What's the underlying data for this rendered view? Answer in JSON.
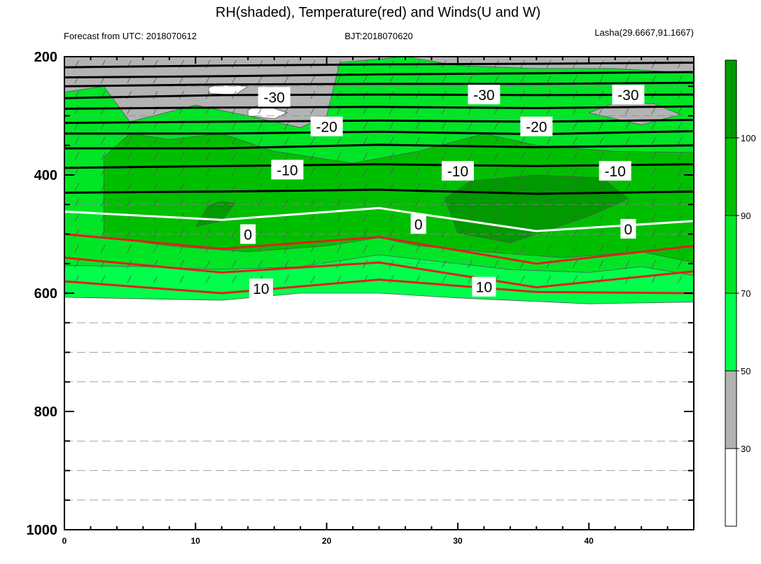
{
  "chart_data": {
    "type": "contour",
    "title": "RH(shaded), Temperature(red) and Winds(U and W)",
    "subtitle_left": "Forecast from UTC: 2018070612",
    "subtitle_center": "BJT:2018070620",
    "subtitle_right": "Lasha(29.6667,91.1667)",
    "x_ticks": [
      "0",
      "10",
      "20",
      "30",
      "40"
    ],
    "x_tick_values": [
      0,
      10,
      20,
      30,
      40
    ],
    "xlim": [
      0,
      48
    ],
    "y_ticks": [
      "200",
      "400",
      "600",
      "800",
      "1000"
    ],
    "y_tick_values": [
      200,
      400,
      600,
      800,
      1000
    ],
    "ylim": [
      200,
      1000
    ],
    "y_reversed": true,
    "colorbar": {
      "labels": [
        "30",
        "50",
        "70",
        "90",
        "100"
      ],
      "levels": [
        0,
        30,
        50,
        70,
        90,
        100,
        110
      ],
      "colors": [
        "#ffffff",
        "#b3b3b3",
        "#00ff4c",
        "#00e626",
        "#00bf00",
        "#009900"
      ]
    },
    "temperature_contours": [
      {
        "label": "-30",
        "color": "#000000",
        "points": [
          [
            0,
            218
          ],
          [
            12,
            215
          ],
          [
            24,
            213
          ],
          [
            36,
            212
          ],
          [
            48,
            210
          ]
        ]
      },
      {
        "label": "-30",
        "color": "#000000",
        "points": [
          [
            0,
            235
          ],
          [
            12,
            233
          ],
          [
            24,
            230
          ],
          [
            36,
            228
          ],
          [
            48,
            226
          ]
        ]
      },
      {
        "label": "-30",
        "color": "#000000",
        "points": [
          [
            0,
            250
          ],
          [
            12,
            247
          ],
          [
            24,
            246
          ],
          [
            36,
            246
          ],
          [
            48,
            244
          ]
        ]
      },
      {
        "label": "-30",
        "color": "#000000",
        "points": [
          [
            0,
            270
          ],
          [
            12,
            265
          ],
          [
            24,
            264
          ],
          [
            36,
            265
          ],
          [
            48,
            264
          ]
        ]
      },
      {
        "label": "-30",
        "color": "#000000",
        "points": [
          [
            0,
            288
          ],
          [
            12,
            286
          ],
          [
            24,
            285
          ],
          [
            36,
            287
          ],
          [
            48,
            284
          ]
        ]
      },
      {
        "label": "-20",
        "color": "#000000",
        "points": [
          [
            0,
            312
          ],
          [
            12,
            310
          ],
          [
            24,
            308
          ],
          [
            36,
            310
          ],
          [
            48,
            307
          ]
        ]
      },
      {
        "label": "-20",
        "color": "#000000",
        "points": [
          [
            0,
            330
          ],
          [
            12,
            330
          ],
          [
            24,
            327
          ],
          [
            36,
            331
          ],
          [
            48,
            326
          ]
        ]
      },
      {
        "label": "-20",
        "color": "#000000",
        "points": [
          [
            0,
            355
          ],
          [
            12,
            355
          ],
          [
            24,
            349
          ],
          [
            36,
            353
          ],
          [
            48,
            350
          ]
        ]
      },
      {
        "label": "-10",
        "color": "#000000",
        "points": [
          [
            0,
            388
          ],
          [
            12,
            385
          ],
          [
            24,
            382
          ],
          [
            36,
            385
          ],
          [
            48,
            382
          ]
        ]
      },
      {
        "label": "-10",
        "color": "#000000",
        "points": [
          [
            0,
            430
          ],
          [
            12,
            428
          ],
          [
            24,
            425
          ],
          [
            36,
            432
          ],
          [
            48,
            428
          ]
        ]
      },
      {
        "label": "0",
        "color": "#ffffff",
        "points": [
          [
            0,
            462
          ],
          [
            12,
            476
          ],
          [
            24,
            456
          ],
          [
            36,
            495
          ],
          [
            48,
            478
          ]
        ]
      },
      {
        "label": "10",
        "color": "#e0201e",
        "points": [
          [
            0,
            500
          ],
          [
            12,
            525
          ],
          [
            24,
            505
          ],
          [
            36,
            550
          ],
          [
            48,
            520
          ]
        ]
      },
      {
        "label": "10",
        "color": "#e0201e",
        "points": [
          [
            0,
            540
          ],
          [
            12,
            565
          ],
          [
            24,
            548
          ],
          [
            36,
            590
          ],
          [
            48,
            563
          ]
        ]
      },
      {
        "label": "10",
        "color": "#e0201e",
        "points": [
          [
            0,
            580
          ],
          [
            12,
            600
          ],
          [
            24,
            577
          ],
          [
            36,
            598
          ],
          [
            48,
            600
          ]
        ]
      }
    ],
    "contour_labels": [
      {
        "text": "-30",
        "x": 16,
        "y": 268
      },
      {
        "text": "-30",
        "x": 32,
        "y": 264
      },
      {
        "text": "-30",
        "x": 43,
        "y": 264
      },
      {
        "text": "-20",
        "x": 20,
        "y": 318
      },
      {
        "text": "-20",
        "x": 36,
        "y": 318
      },
      {
        "text": "-10",
        "x": 17,
        "y": 391
      },
      {
        "text": "-10",
        "x": 30,
        "y": 393
      },
      {
        "text": "-10",
        "x": 42,
        "y": 393
      },
      {
        "text": "0",
        "x": 14,
        "y": 500
      },
      {
        "text": "0",
        "x": 27,
        "y": 483
      },
      {
        "text": "0",
        "x": 43,
        "y": 491
      },
      {
        "text": "10",
        "x": 15,
        "y": 592
      },
      {
        "text": "10",
        "x": 32,
        "y": 589
      }
    ],
    "rh_regions": [
      {
        "level": 50,
        "points": [
          [
            0,
            200
          ],
          [
            48,
            200
          ],
          [
            48,
            615
          ],
          [
            40,
            618
          ],
          [
            30,
            608
          ],
          [
            24,
            600
          ],
          [
            18,
            600
          ],
          [
            12,
            612
          ],
          [
            0,
            607
          ]
        ]
      },
      {
        "level": 70,
        "points": [
          [
            0,
            200
          ],
          [
            48,
            200
          ],
          [
            48,
            570
          ],
          [
            44,
            555
          ],
          [
            40,
            565
          ],
          [
            34,
            560
          ],
          [
            28,
            545
          ],
          [
            24,
            535
          ],
          [
            18,
            555
          ],
          [
            12,
            560
          ],
          [
            6,
            555
          ],
          [
            0,
            553
          ]
        ]
      },
      {
        "level": 90,
        "points": [
          [
            3,
            370
          ],
          [
            5,
            330
          ],
          [
            8,
            340
          ],
          [
            12,
            330
          ],
          [
            16,
            360
          ],
          [
            22,
            380
          ],
          [
            27,
            360
          ],
          [
            32,
            330
          ],
          [
            36,
            350
          ],
          [
            42,
            360
          ],
          [
            48,
            362
          ],
          [
            48,
            548
          ],
          [
            44,
            530
          ],
          [
            38,
            540
          ],
          [
            32,
            530
          ],
          [
            27,
            520
          ],
          [
            24,
            506
          ],
          [
            20,
            520
          ],
          [
            14,
            530
          ],
          [
            8,
            520
          ],
          [
            3,
            505
          ]
        ]
      },
      {
        "level": 100,
        "points": [
          [
            29,
            440
          ],
          [
            31,
            410
          ],
          [
            36,
            400
          ],
          [
            41,
            405
          ],
          [
            43,
            440
          ],
          [
            40,
            470
          ],
          [
            34,
            515
          ],
          [
            30,
            498
          ]
        ]
      },
      {
        "level": 100,
        "points": [
          [
            11,
            452
          ],
          [
            12,
            444
          ],
          [
            13,
            448
          ],
          [
            12,
            478
          ],
          [
            10,
            487
          ]
        ]
      },
      {
        "level": 30,
        "points": [
          [
            0,
            200
          ],
          [
            48,
            200
          ],
          [
            48,
            228
          ],
          [
            42,
            220
          ],
          [
            36,
            220
          ],
          [
            30,
            215
          ],
          [
            26,
            200
          ],
          [
            21,
            210
          ],
          [
            20,
            300
          ],
          [
            18,
            320
          ],
          [
            14,
            300
          ],
          [
            10,
            282
          ],
          [
            5,
            310
          ],
          [
            3,
            250
          ],
          [
            0,
            260
          ]
        ]
      },
      {
        "level": 30,
        "points": [
          [
            40,
            295
          ],
          [
            42,
            278
          ],
          [
            45,
            280
          ],
          [
            47,
            298
          ],
          [
            44,
            315
          ]
        ]
      },
      {
        "level": 0,
        "points": [
          [
            11,
            252
          ],
          [
            12,
            246
          ],
          [
            14,
            250
          ],
          [
            13,
            265
          ],
          [
            11,
            262
          ]
        ]
      },
      {
        "level": 0,
        "points": [
          [
            14,
            290
          ],
          [
            15,
            280
          ],
          [
            17,
            295
          ],
          [
            16,
            305
          ],
          [
            14,
            300
          ]
        ]
      }
    ]
  }
}
